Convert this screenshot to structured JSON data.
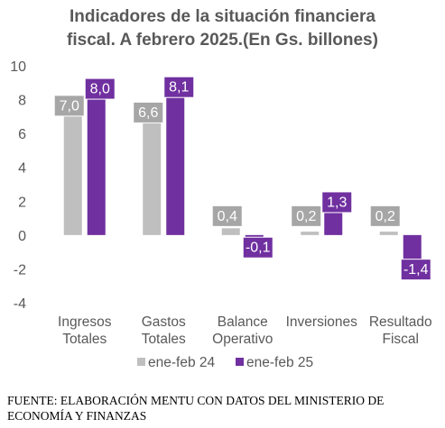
{
  "chart_data": {
    "type": "bar",
    "title_lines": [
      "Indicadores de la situación financiera",
      "fiscal. A febrero 2025.(En Gs. billones)"
    ],
    "categories": [
      [
        "Ingresos",
        "Totales"
      ],
      [
        "Gastos",
        "Totales"
      ],
      [
        "Balance",
        "Operativo"
      ],
      [
        "Inversiones"
      ],
      [
        "Resultado",
        "Fiscal"
      ]
    ],
    "series": [
      {
        "name": "ene-feb 24",
        "values": [
          7.0,
          6.6,
          0.4,
          0.2,
          0.2
        ],
        "labels": [
          "7,0",
          "6,6",
          "0,4",
          "0,2",
          "0,2"
        ],
        "color": "#bfbfbf",
        "label_bg": "#a6a6a6"
      },
      {
        "name": "ene-feb 25",
        "values": [
          8.0,
          8.1,
          -0.1,
          1.3,
          -1.4
        ],
        "labels": [
          "8,0",
          "8,1",
          "-0,1",
          "1,3",
          "-1,4"
        ],
        "color": "#7030a0",
        "label_bg": "#7030a0"
      }
    ],
    "yticks": [
      -4,
      -2,
      0,
      2,
      4,
      6,
      8,
      10
    ],
    "ylim": [
      -4,
      10
    ],
    "grid": false,
    "legend": "bottom"
  },
  "source_text": "FUENTE: ELABORACIÓN MENTU CON DATOS DEL MINISTERIO DE ECONOMÍA Y FINANZAS"
}
